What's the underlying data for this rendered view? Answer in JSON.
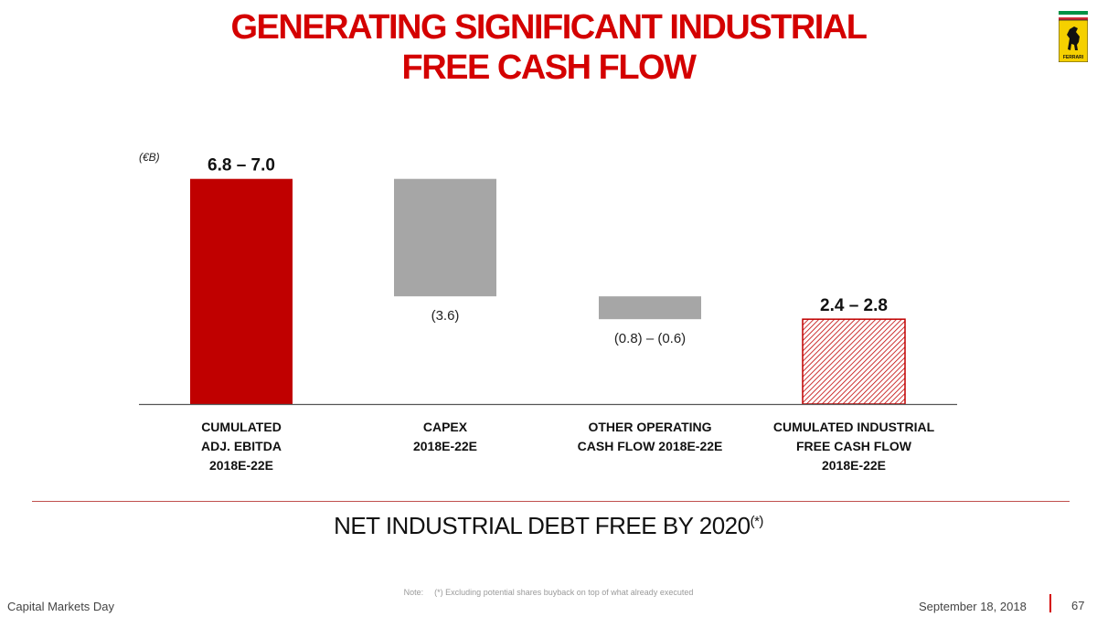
{
  "title": {
    "line1": "GENERATING SIGNIFICANT INDUSTRIAL",
    "line2": "FREE CASH FLOW"
  },
  "logo": {
    "icon": "prancing-horse-logo-icon",
    "text": "FERRARI"
  },
  "unit_label": "(€B)",
  "chart_data": {
    "type": "bar",
    "subtype": "waterfall",
    "categories": [
      [
        "CUMULATED",
        "ADJ. EBITDA",
        "2018E-22E"
      ],
      [
        "CAPEX",
        "2018E-22E"
      ],
      [
        "OTHER OPERATING",
        "CASH FLOW 2018E-22E"
      ],
      [
        "CUMULATED INDUSTRIAL",
        "FREE CASH FLOW",
        "2018E-22E"
      ]
    ],
    "values": [
      {
        "label": "6.8 – 7.0",
        "start": 0,
        "end": 6.9
      },
      {
        "label": "(3.6)",
        "start": 6.9,
        "end": 3.3
      },
      {
        "label": "(0.8) – (0.6)",
        "start": 3.3,
        "end": 2.6
      },
      {
        "label": "2.4 – 2.8",
        "start": 0,
        "end": 2.6
      }
    ],
    "ylim": [
      0,
      7.9
    ],
    "grid": false,
    "colors": {
      "total": "#c00000",
      "decrease": "#a6a6a6",
      "result_border": "#c00000",
      "result_hatch": "#c00000"
    }
  },
  "separator_color": "#c0504d",
  "conclusion": {
    "text": "NET INDUSTRIAL DEBT FREE BY 2020",
    "sup": "(*)"
  },
  "note": {
    "label": "Note:",
    "text": "(*) Excluding potential shares buyback on top of what already executed"
  },
  "footer": {
    "left": "Capital Markets Day",
    "date": "September 18, 2018",
    "page": "67"
  }
}
